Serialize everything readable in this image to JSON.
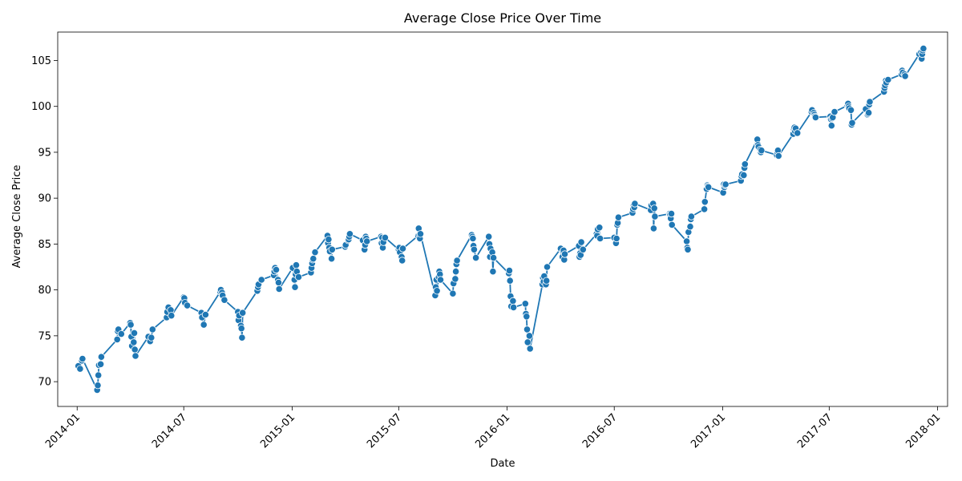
{
  "chart_data": {
    "type": "line",
    "title": "Average Close Price Over Time",
    "xlabel": "Date",
    "ylabel": "Average Close Price",
    "xlim": [
      "2013-11-29",
      "2018-01-18"
    ],
    "ylim": [
      67.3,
      108.1
    ],
    "x_ticks": [
      "2014-01",
      "2014-07",
      "2015-01",
      "2015-07",
      "2016-01",
      "2016-07",
      "2017-01",
      "2017-07",
      "2018-01"
    ],
    "y_ticks": [
      70,
      75,
      80,
      85,
      90,
      95,
      100,
      105
    ],
    "grid": false,
    "legend": "none",
    "markers": "circle",
    "colors": {
      "line": "#1f77b4",
      "marker_edge": "#ffffff",
      "axis": "#000000"
    },
    "series": [
      {
        "points": [
          [
            "2014-01-03",
            71.7
          ],
          [
            "2014-01-06",
            71.4
          ],
          [
            "2014-01-09",
            72.3
          ],
          [
            "2014-01-10",
            72.5
          ],
          [
            "2014-02-04",
            69.1
          ],
          [
            "2014-02-05",
            69.6
          ],
          [
            "2014-02-06",
            70.7
          ],
          [
            "2014-02-07",
            71.8
          ],
          [
            "2014-02-10",
            71.9
          ],
          [
            "2014-02-11",
            72.7
          ],
          [
            "2014-03-10",
            74.6
          ],
          [
            "2014-03-11",
            75.5
          ],
          [
            "2014-03-12",
            75.7
          ],
          [
            "2014-03-17",
            75.2
          ],
          [
            "2014-04-01",
            76.4
          ],
          [
            "2014-04-02",
            76.2
          ],
          [
            "2014-04-03",
            74.9
          ],
          [
            "2014-04-04",
            73.9
          ],
          [
            "2014-04-07",
            74.3
          ],
          [
            "2014-04-08",
            75.3
          ],
          [
            "2014-04-09",
            73.5
          ],
          [
            "2014-04-10",
            72.8
          ],
          [
            "2014-05-02",
            74.9
          ],
          [
            "2014-05-05",
            74.4
          ],
          [
            "2014-05-07",
            74.8
          ],
          [
            "2014-05-09",
            75.7
          ],
          [
            "2014-06-02",
            77.0
          ],
          [
            "2014-06-03",
            77.6
          ],
          [
            "2014-06-05",
            78.1
          ],
          [
            "2014-06-09",
            77.8
          ],
          [
            "2014-06-10",
            77.2
          ],
          [
            "2014-07-01",
            79.2
          ],
          [
            "2014-07-02",
            79.1
          ],
          [
            "2014-07-03",
            78.6
          ],
          [
            "2014-07-07",
            78.3
          ],
          [
            "2014-07-31",
            77.5
          ],
          [
            "2014-08-01",
            77.0
          ],
          [
            "2014-08-04",
            76.2
          ],
          [
            "2014-08-07",
            77.3
          ],
          [
            "2014-09-01",
            79.8
          ],
          [
            "2014-09-02",
            80.0
          ],
          [
            "2014-09-04",
            79.7
          ],
          [
            "2014-09-05",
            79.4
          ],
          [
            "2014-09-08",
            78.9
          ],
          [
            "2014-10-01",
            77.6
          ],
          [
            "2014-10-02",
            76.7
          ],
          [
            "2014-10-03",
            77.2
          ],
          [
            "2014-10-06",
            76.1
          ],
          [
            "2014-10-07",
            75.8
          ],
          [
            "2014-10-08",
            74.8
          ],
          [
            "2014-10-09",
            77.5
          ],
          [
            "2014-11-03",
            79.9
          ],
          [
            "2014-11-04",
            80.3
          ],
          [
            "2014-11-05",
            80.6
          ],
          [
            "2014-11-10",
            81.1
          ],
          [
            "2014-12-01",
            81.6
          ],
          [
            "2014-12-02",
            82.0
          ],
          [
            "2014-12-03",
            82.4
          ],
          [
            "2014-12-05",
            82.2
          ],
          [
            "2014-12-08",
            81.1
          ],
          [
            "2014-12-09",
            80.8
          ],
          [
            "2014-12-10",
            80.1
          ],
          [
            "2015-01-02",
            82.4
          ],
          [
            "2015-01-05",
            81.1
          ],
          [
            "2015-01-06",
            80.3
          ],
          [
            "2015-01-07",
            81.7
          ],
          [
            "2015-01-08",
            82.7
          ],
          [
            "2015-01-09",
            82.0
          ],
          [
            "2015-01-12",
            81.4
          ],
          [
            "2015-02-02",
            81.9
          ],
          [
            "2015-02-03",
            82.4
          ],
          [
            "2015-02-04",
            82.9
          ],
          [
            "2015-02-05",
            83.3
          ],
          [
            "2015-02-06",
            83.4
          ],
          [
            "2015-02-09",
            84.1
          ],
          [
            "2015-03-02",
            85.9
          ],
          [
            "2015-03-03",
            85.1
          ],
          [
            "2015-03-04",
            85.5
          ],
          [
            "2015-03-05",
            84.6
          ],
          [
            "2015-03-06",
            84.2
          ],
          [
            "2015-03-09",
            83.4
          ],
          [
            "2015-03-10",
            84.4
          ],
          [
            "2015-04-01",
            84.7
          ],
          [
            "2015-04-02",
            84.9
          ],
          [
            "2015-04-06",
            85.4
          ],
          [
            "2015-04-07",
            85.5
          ],
          [
            "2015-04-08",
            85.8
          ],
          [
            "2015-04-09",
            86.1
          ],
          [
            "2015-05-01",
            85.4
          ],
          [
            "2015-05-04",
            84.4
          ],
          [
            "2015-05-05",
            84.9
          ],
          [
            "2015-05-06",
            85.8
          ],
          [
            "2015-05-07",
            85.6
          ],
          [
            "2015-05-08",
            85.3
          ],
          [
            "2015-06-01",
            85.8
          ],
          [
            "2015-06-02",
            85.1
          ],
          [
            "2015-06-03",
            85.7
          ],
          [
            "2015-06-04",
            84.6
          ],
          [
            "2015-06-05",
            85.2
          ],
          [
            "2015-06-08",
            85.7
          ],
          [
            "2015-07-01",
            84.4
          ],
          [
            "2015-07-02",
            84.6
          ],
          [
            "2015-07-03",
            84.1
          ],
          [
            "2015-07-06",
            83.6
          ],
          [
            "2015-07-07",
            83.2
          ],
          [
            "2015-07-08",
            84.5
          ],
          [
            "2015-08-03",
            85.9
          ],
          [
            "2015-08-04",
            86.7
          ],
          [
            "2015-08-05",
            86.0
          ],
          [
            "2015-08-06",
            85.6
          ],
          [
            "2015-08-07",
            86.1
          ],
          [
            "2015-09-01",
            79.4
          ],
          [
            "2015-09-02",
            80.3
          ],
          [
            "2015-09-03",
            81.1
          ],
          [
            "2015-09-04",
            79.9
          ],
          [
            "2015-09-07",
            81.4
          ],
          [
            "2015-09-08",
            82.0
          ],
          [
            "2015-09-09",
            81.7
          ],
          [
            "2015-09-10",
            81.1
          ],
          [
            "2015-10-01",
            79.6
          ],
          [
            "2015-10-02",
            80.7
          ],
          [
            "2015-10-05",
            81.2
          ],
          [
            "2015-10-06",
            82.0
          ],
          [
            "2015-10-07",
            82.8
          ],
          [
            "2015-10-08",
            83.2
          ],
          [
            "2015-11-02",
            86.0
          ],
          [
            "2015-11-03",
            85.8
          ],
          [
            "2015-11-04",
            85.6
          ],
          [
            "2015-11-05",
            84.8
          ],
          [
            "2015-11-06",
            84.4
          ],
          [
            "2015-11-09",
            83.5
          ],
          [
            "2015-12-01",
            85.8
          ],
          [
            "2015-12-02",
            85.0
          ],
          [
            "2015-12-03",
            83.6
          ],
          [
            "2015-12-04",
            84.5
          ],
          [
            "2015-12-07",
            84.1
          ],
          [
            "2015-12-08",
            82.0
          ],
          [
            "2015-12-09",
            83.5
          ],
          [
            "2016-01-04",
            81.8
          ],
          [
            "2016-01-05",
            82.1
          ],
          [
            "2016-01-06",
            81.0
          ],
          [
            "2016-01-07",
            79.3
          ],
          [
            "2016-01-08",
            78.2
          ],
          [
            "2016-01-11",
            78.8
          ],
          [
            "2016-01-12",
            78.1
          ],
          [
            "2016-02-01",
            78.5
          ],
          [
            "2016-02-02",
            77.4
          ],
          [
            "2016-02-03",
            77.1
          ],
          [
            "2016-02-04",
            75.7
          ],
          [
            "2016-02-05",
            74.3
          ],
          [
            "2016-02-08",
            75.0
          ],
          [
            "2016-02-09",
            73.6
          ],
          [
            "2016-03-01",
            80.6
          ],
          [
            "2016-03-02",
            81.3
          ],
          [
            "2016-03-03",
            80.9
          ],
          [
            "2016-03-04",
            81.5
          ],
          [
            "2016-03-07",
            80.6
          ],
          [
            "2016-03-08",
            81.0
          ],
          [
            "2016-03-09",
            82.5
          ],
          [
            "2016-04-01",
            84.5
          ],
          [
            "2016-04-04",
            83.6
          ],
          [
            "2016-04-05",
            84.2
          ],
          [
            "2016-04-06",
            84.3
          ],
          [
            "2016-04-07",
            83.3
          ],
          [
            "2016-04-08",
            83.9
          ],
          [
            "2016-05-02",
            84.8
          ],
          [
            "2016-05-03",
            83.6
          ],
          [
            "2016-05-04",
            84.0
          ],
          [
            "2016-05-05",
            83.8
          ],
          [
            "2016-05-06",
            85.2
          ],
          [
            "2016-05-09",
            84.4
          ],
          [
            "2016-06-01",
            86.1
          ],
          [
            "2016-06-02",
            85.9
          ],
          [
            "2016-06-03",
            86.6
          ],
          [
            "2016-06-06",
            86.8
          ],
          [
            "2016-06-07",
            85.6
          ],
          [
            "2016-07-01",
            85.7
          ],
          [
            "2016-07-04",
            85.1
          ],
          [
            "2016-07-05",
            85.6
          ],
          [
            "2016-07-06",
            87.1
          ],
          [
            "2016-07-07",
            87.3
          ],
          [
            "2016-07-08",
            87.9
          ],
          [
            "2016-08-01",
            88.4
          ],
          [
            "2016-08-02",
            88.8
          ],
          [
            "2016-08-03",
            89.2
          ],
          [
            "2016-08-04",
            89.0
          ],
          [
            "2016-08-05",
            89.4
          ],
          [
            "2016-09-01",
            88.7
          ],
          [
            "2016-09-02",
            89.2
          ],
          [
            "2016-09-05",
            89.4
          ],
          [
            "2016-09-06",
            86.7
          ],
          [
            "2016-09-07",
            88.9
          ],
          [
            "2016-09-08",
            88.0
          ],
          [
            "2016-10-03",
            88.3
          ],
          [
            "2016-10-04",
            88.2
          ],
          [
            "2016-10-05",
            87.8
          ],
          [
            "2016-10-06",
            88.3
          ],
          [
            "2016-10-07",
            87.1
          ],
          [
            "2016-11-01",
            85.3
          ],
          [
            "2016-11-02",
            84.6
          ],
          [
            "2016-11-03",
            84.4
          ],
          [
            "2016-11-04",
            86.3
          ],
          [
            "2016-11-07",
            86.9
          ],
          [
            "2016-11-08",
            87.7
          ],
          [
            "2016-11-09",
            88.0
          ],
          [
            "2016-12-01",
            88.8
          ],
          [
            "2016-12-02",
            89.6
          ],
          [
            "2016-12-05",
            91.0
          ],
          [
            "2016-12-06",
            91.4
          ],
          [
            "2016-12-07",
            91.3
          ],
          [
            "2016-12-08",
            91.2
          ],
          [
            "2017-01-02",
            90.6
          ],
          [
            "2017-01-03",
            91.5
          ],
          [
            "2017-01-04",
            91.2
          ],
          [
            "2017-01-05",
            91.4
          ],
          [
            "2017-01-06",
            91.5
          ],
          [
            "2017-02-01",
            91.9
          ],
          [
            "2017-02-02",
            92.4
          ],
          [
            "2017-02-03",
            92.6
          ],
          [
            "2017-02-06",
            92.5
          ],
          [
            "2017-02-07",
            93.3
          ],
          [
            "2017-02-08",
            93.7
          ],
          [
            "2017-03-01",
            96.4
          ],
          [
            "2017-03-02",
            95.8
          ],
          [
            "2017-03-03",
            95.6
          ],
          [
            "2017-03-06",
            95.3
          ],
          [
            "2017-03-07",
            95.0
          ],
          [
            "2017-03-08",
            95.2
          ],
          [
            "2017-04-03",
            94.7
          ],
          [
            "2017-04-04",
            95.0
          ],
          [
            "2017-04-05",
            95.2
          ],
          [
            "2017-04-06",
            94.6
          ],
          [
            "2017-05-01",
            97.0
          ],
          [
            "2017-05-02",
            97.5
          ],
          [
            "2017-05-03",
            97.7
          ],
          [
            "2017-05-04",
            97.3
          ],
          [
            "2017-05-05",
            97.6
          ],
          [
            "2017-05-08",
            97.1
          ],
          [
            "2017-06-01",
            99.4
          ],
          [
            "2017-06-02",
            99.6
          ],
          [
            "2017-06-05",
            99.3
          ],
          [
            "2017-06-06",
            99.1
          ],
          [
            "2017-06-07",
            98.9
          ],
          [
            "2017-06-08",
            98.8
          ],
          [
            "2017-07-03",
            98.9
          ],
          [
            "2017-07-04",
            98.6
          ],
          [
            "2017-07-05",
            97.9
          ],
          [
            "2017-07-06",
            98.7
          ],
          [
            "2017-07-07",
            98.8
          ],
          [
            "2017-07-10",
            99.4
          ],
          [
            "2017-08-01",
            100.1
          ],
          [
            "2017-08-02",
            100.3
          ],
          [
            "2017-08-03",
            100.0
          ],
          [
            "2017-08-04",
            99.8
          ],
          [
            "2017-08-07",
            99.6
          ],
          [
            "2017-08-08",
            98.0
          ],
          [
            "2017-08-09",
            98.2
          ],
          [
            "2017-09-01",
            99.7
          ],
          [
            "2017-09-04",
            99.1
          ],
          [
            "2017-09-05",
            99.2
          ],
          [
            "2017-09-06",
            99.3
          ],
          [
            "2017-09-07",
            100.2
          ],
          [
            "2017-09-08",
            100.5
          ],
          [
            "2017-10-02",
            101.6
          ],
          [
            "2017-10-03",
            102.0
          ],
          [
            "2017-10-04",
            102.3
          ],
          [
            "2017-10-05",
            102.8
          ],
          [
            "2017-10-06",
            102.6
          ],
          [
            "2017-10-09",
            102.9
          ],
          [
            "2017-11-01",
            103.5
          ],
          [
            "2017-11-02",
            103.9
          ],
          [
            "2017-11-03",
            103.7
          ],
          [
            "2017-11-06",
            103.5
          ],
          [
            "2017-11-07",
            103.3
          ],
          [
            "2017-12-01",
            105.7
          ],
          [
            "2017-12-04",
            105.9
          ],
          [
            "2017-12-05",
            105.2
          ],
          [
            "2017-12-06",
            105.7
          ],
          [
            "2017-12-07",
            106.1
          ],
          [
            "2017-12-08",
            106.3
          ]
        ]
      }
    ]
  }
}
